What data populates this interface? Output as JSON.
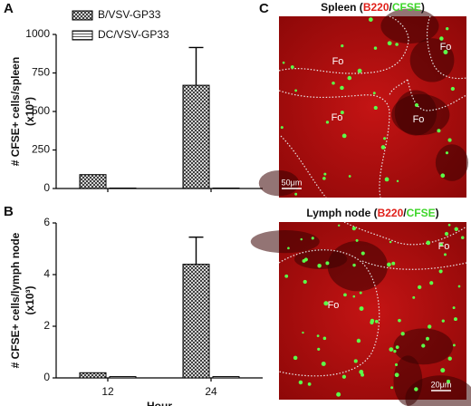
{
  "chart_data": [
    {
      "type": "bar",
      "label": "A",
      "ylabel": "# CFSE+ cells/spleen",
      "ylabel_unit": "(x10³)",
      "categories": [
        null,
        null
      ],
      "series": [
        {
          "name": "B/VSV-GP33",
          "color": "#000000",
          "pattern": "checkered",
          "values": [
            90,
            670
          ],
          "errors": [
            null,
            245
          ]
        },
        {
          "name": "DC/VSV-GP33",
          "color": "#000000",
          "pattern": "lined",
          "values": [
            3,
            3
          ],
          "errors": [
            null,
            null
          ]
        }
      ],
      "ylim": [
        0,
        1000
      ],
      "yticks": [
        0,
        250,
        500,
        750,
        1000
      ],
      "legend": "top"
    },
    {
      "type": "bar",
      "label": "B",
      "ylabel": "# CFSE+ cells/lymph node",
      "ylabel_unit": "(x10³)",
      "xlabel": "Hour",
      "categories": [
        "12",
        "24"
      ],
      "series": [
        {
          "color": "#000000",
          "pattern": "checkered",
          "values": [
            0.2,
            4.4
          ],
          "errors": [
            null,
            1.05
          ]
        },
        {
          "color": "#000000",
          "pattern": "lined",
          "values": [
            0.05,
            0.05
          ],
          "errors": [
            null,
            null
          ]
        }
      ],
      "ylim": [
        0,
        6
      ],
      "yticks": [
        0,
        2,
        4,
        6
      ],
      "legend": false
    }
  ],
  "image_panels": {
    "label": "C",
    "panels": [
      {
        "title": [
          "Spleen (",
          "B220",
          "/",
          "CFSE",
          ")"
        ],
        "labels": [
          "Fo",
          "Fo",
          "Fo",
          "Fo"
        ],
        "scale_bar": "50μm"
      },
      {
        "title": [
          "Lymph node (",
          "B220",
          "/",
          "CFSE",
          ")"
        ],
        "labels": [
          "Fo",
          "Fo"
        ],
        "scale_bar": "20μm"
      }
    ]
  }
}
